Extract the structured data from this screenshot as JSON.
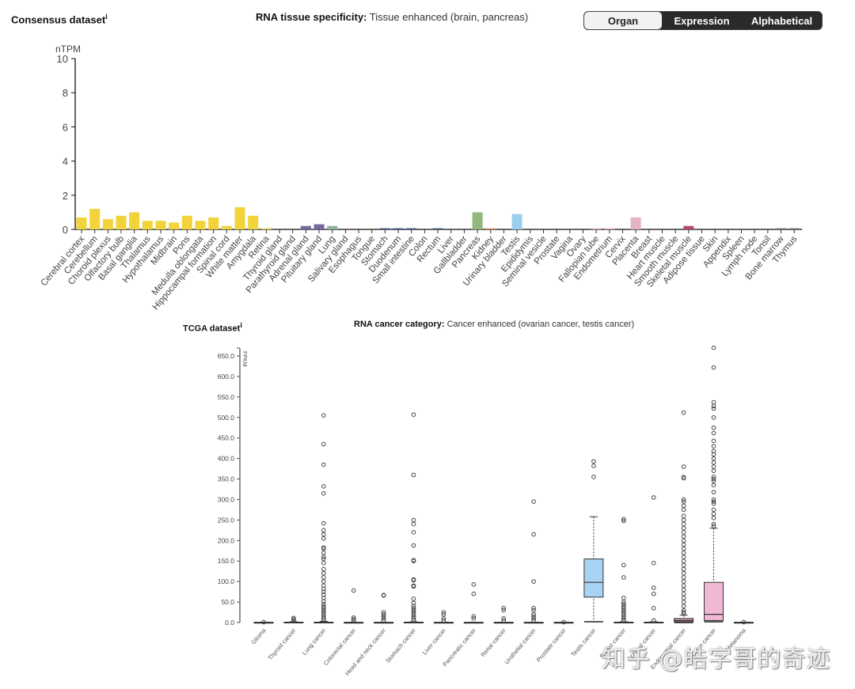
{
  "top": {
    "dataset_title": "Consensus dataset",
    "info_mark": "i",
    "specificity_label": "RNA tissue specificity:",
    "specificity_value": "Tissue enhanced (brain, pancreas)",
    "sort_options": [
      {
        "label": "Organ",
        "active": true
      },
      {
        "label": "Expression",
        "active": false
      },
      {
        "label": "Alphabetical",
        "active": false
      }
    ]
  },
  "bottom": {
    "dataset_title": "TCGA dataset",
    "info_mark": "i",
    "category_label": "RNA cancer category:",
    "category_value": "Cancer enhanced (ovarian cancer, testis cancer)"
  },
  "watermark": "知乎 @皓字哥的奇迹",
  "chart_data": [
    {
      "type": "bar",
      "title": "Consensus dataset",
      "ylabel": "nTPM",
      "xlabel": "",
      "ylim": [
        0,
        10
      ],
      "yticks": [
        0,
        2,
        4,
        6,
        8,
        10
      ],
      "grid": false,
      "categories": [
        "Cerebral cortex",
        "Cerebellum",
        "Choroid plexus",
        "Olfactory bulb",
        "Basal ganglia",
        "Thalamus",
        "Hypothalamus",
        "Midbrain",
        "Pons",
        "Medulla oblongata",
        "Hippocampal formation",
        "Spinal cord",
        "White matter",
        "Amygdala",
        "Retina",
        "Thyroid gland",
        "Parathyroid gland",
        "Adrenal gland",
        "Pituitary gland",
        "Lung",
        "Salivary gland",
        "Esophagus",
        "Tongue",
        "Stomach",
        "Duodenum",
        "Small intestine",
        "Colon",
        "Rectum",
        "Liver",
        "Gallbladder",
        "Pancreas",
        "Kidney",
        "Urinary bladder",
        "Testis",
        "Epididymis",
        "Seminal vesicle",
        "Prostate",
        "Vagina",
        "Ovary",
        "Fallopian tube",
        "Endometrium",
        "Cervix",
        "Placenta",
        "Breast",
        "Heart muscle",
        "Smooth muscle",
        "Skeletal muscle",
        "Adipose tissue",
        "Skin",
        "Appendix",
        "Spleen",
        "Lymph node",
        "Tonsil",
        "Bone marrow",
        "Thymus"
      ],
      "values": [
        0.7,
        1.2,
        0.6,
        0.8,
        1.0,
        0.5,
        0.5,
        0.4,
        0.8,
        0.5,
        0.7,
        0.2,
        1.3,
        0.8,
        0.1,
        0,
        0,
        0.2,
        0.3,
        0.2,
        0,
        0,
        0,
        0.05,
        0.05,
        0.05,
        0,
        0.05,
        0,
        0,
        1.0,
        0.05,
        0,
        0.9,
        0,
        0,
        0,
        0,
        0,
        0.05,
        0.05,
        0,
        0.7,
        0,
        0,
        0,
        0.2,
        0,
        0,
        0,
        0,
        0,
        0,
        0.05,
        0.05
      ],
      "colors": [
        "#f2d33a",
        "#f2d33a",
        "#f2d33a",
        "#f2d33a",
        "#f2d33a",
        "#f2d33a",
        "#f2d33a",
        "#f2d33a",
        "#f2d33a",
        "#f2d33a",
        "#f2d33a",
        "#f2d33a",
        "#f2d33a",
        "#f2d33a",
        "#f2e58a",
        "#8a78a8",
        "#8a78a8",
        "#75689a",
        "#75689a",
        "#8fb3a0",
        "#3b5f8a",
        "#3b5f8a",
        "#3b5f8a",
        "#3b5f8a",
        "#3b5f8a",
        "#3b5f8a",
        "#3b5f8a",
        "#3b5f8a",
        "#3b5f8a",
        "#3b5f8a",
        "#8fb87c",
        "#e8a070",
        "#e8a070",
        "#9ccfee",
        "#9ccfee",
        "#9ccfee",
        "#9ccfee",
        "#e7b2c8",
        "#e7b2c8",
        "#e7b2c8",
        "#e7b2c8",
        "#e7b2c8",
        "#e7b2c8",
        "#e7b2c8",
        "#a55b6e",
        "#a55b6e",
        "#b04a65",
        "#b04a65",
        "#999999",
        "#999999",
        "#777777",
        "#777777",
        "#777777",
        "#777777",
        "#777777"
      ]
    },
    {
      "type": "box",
      "title": "TCGA dataset",
      "ylabel": "FPKM",
      "xlabel": "",
      "ylim": [
        0,
        650
      ],
      "yticks": [
        0,
        50,
        100,
        150,
        200,
        250,
        300,
        350,
        400,
        450,
        500,
        550,
        600,
        650
      ],
      "ytick_labels": [
        "0.0",
        "50.0",
        "100.0",
        "150.0",
        "200.0",
        "250.0",
        "300.0",
        "350.0",
        "400.0",
        "450.0",
        "500.0",
        "550.0",
        "600.0",
        "650.0"
      ],
      "grid": false,
      "categories": [
        "Glioma",
        "Thyroid cancer",
        "Lung cancer",
        "Colorectal cancer",
        "Head and neck cancer",
        "Stomach cancer",
        "Liver cancer",
        "Pancreatic cancer",
        "Renal cancer",
        "Urothelial cancer",
        "Prostate cancer",
        "Testis cancer",
        "Breast cancer",
        "Cervical cancer",
        "Endometrial cancer",
        "Ovarian cancer",
        "Melanoma"
      ],
      "boxes": [
        {
          "min": 0,
          "q1": 0,
          "median": 0,
          "q3": 0.5,
          "max": 1,
          "color": "#cccccc",
          "outliers": [
            1
          ]
        },
        {
          "min": 0,
          "q1": 0,
          "median": 0,
          "q3": 1,
          "max": 2,
          "color": "#cccccc",
          "outliers": [
            5,
            8,
            11
          ]
        },
        {
          "min": 0,
          "q1": 0,
          "median": 0.5,
          "q3": 1,
          "max": 3,
          "color": "#cccccc",
          "outliers": [
            505,
            435,
            385,
            332,
            315,
            242,
            225,
            215,
            205,
            183,
            180,
            170,
            160,
            155,
            145,
            130,
            120,
            110,
            100,
            90,
            82,
            75,
            68,
            60,
            52,
            45,
            40,
            35,
            30,
            25,
            20,
            15,
            10,
            6
          ]
        },
        {
          "min": 0,
          "q1": 0,
          "median": 0,
          "q3": 0.5,
          "max": 1,
          "color": "#cccccc",
          "outliers": [
            78,
            12,
            8,
            5
          ]
        },
        {
          "min": 0,
          "q1": 0,
          "median": 0,
          "q3": 0.5,
          "max": 1,
          "color": "#cccccc",
          "outliers": [
            67,
            66,
            25,
            20,
            15,
            10,
            5
          ]
        },
        {
          "min": 0,
          "q1": 0,
          "median": 0.5,
          "q3": 1,
          "max": 2,
          "color": "#cccccc",
          "outliers": [
            507,
            360,
            250,
            240,
            220,
            188,
            152,
            150,
            105,
            103,
            90,
            88,
            58,
            48,
            40,
            35,
            30,
            25,
            20,
            15,
            10,
            6
          ]
        },
        {
          "min": 0,
          "q1": 0,
          "median": 0,
          "q3": 0.5,
          "max": 1,
          "color": "#cccccc",
          "outliers": [
            25,
            20,
            10,
            5
          ]
        },
        {
          "min": 0,
          "q1": 0,
          "median": 0,
          "q3": 0.5,
          "max": 1,
          "color": "#cccccc",
          "outliers": [
            93,
            70,
            15,
            10
          ]
        },
        {
          "min": 0,
          "q1": 0,
          "median": 0,
          "q3": 0.5,
          "max": 1,
          "color": "#cccccc",
          "outliers": [
            35,
            30,
            10,
            5
          ]
        },
        {
          "min": 0,
          "q1": 0,
          "median": 0,
          "q3": 0.5,
          "max": 1,
          "color": "#cccccc",
          "outliers": [
            295,
            215,
            100,
            35,
            30,
            20,
            15,
            10,
            5
          ]
        },
        {
          "min": 0,
          "q1": 0,
          "median": 0,
          "q3": 0.5,
          "max": 1,
          "color": "#cccccc",
          "outliers": [
            1
          ]
        },
        {
          "min": 2,
          "q1": 62,
          "median": 98,
          "q3": 155,
          "max": 258,
          "color": "#a9d3f2",
          "outliers": [
            393,
            382,
            355
          ]
        },
        {
          "min": 0,
          "q1": 0,
          "median": 0.5,
          "q3": 1,
          "max": 2,
          "color": "#cccccc",
          "outliers": [
            252,
            248,
            140,
            110,
            60,
            50,
            45,
            40,
            35,
            30,
            25,
            20,
            15,
            10,
            5
          ]
        },
        {
          "min": 0,
          "q1": 0,
          "median": 0.5,
          "q3": 1,
          "max": 2,
          "color": "#cccccc",
          "outliers": [
            305,
            145,
            85,
            70,
            35,
            5
          ]
        },
        {
          "min": 0,
          "q1": 2,
          "median": 5,
          "q3": 10,
          "max": 18,
          "color": "#d3a0b8",
          "outliers": [
            512,
            380,
            355,
            352,
            300,
            295,
            285,
            275,
            260,
            250,
            240,
            230,
            220,
            210,
            200,
            190,
            180,
            170,
            160,
            150,
            140,
            130,
            120,
            110,
            100,
            90,
            80,
            70,
            60,
            50,
            40,
            30,
            25,
            22
          ]
        },
        {
          "min": 2,
          "q1": 5,
          "median": 20,
          "q3": 98,
          "max": 230,
          "color": "#f0b8d4",
          "outliers": [
            670,
            622,
            537,
            528,
            522,
            500,
            475,
            462,
            443,
            430,
            418,
            410,
            400,
            390,
            380,
            370,
            355,
            350,
            345,
            335,
            318,
            300,
            295,
            290,
            275,
            265,
            255,
            240,
            235
          ]
        },
        {
          "min": 0,
          "q1": 0,
          "median": 0,
          "q3": 0.5,
          "max": 1,
          "color": "#cccccc",
          "outliers": [
            1
          ]
        }
      ]
    }
  ]
}
